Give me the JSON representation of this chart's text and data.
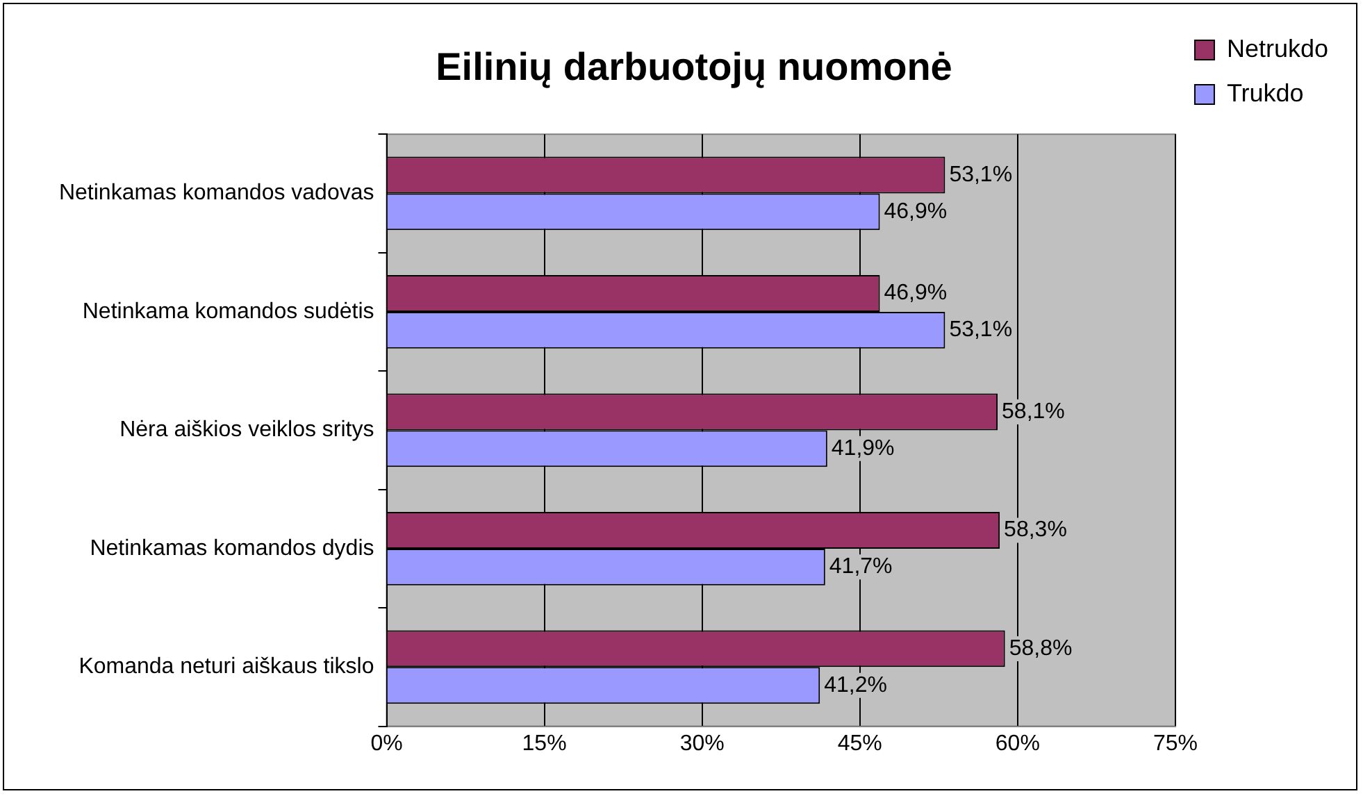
{
  "chart_data": {
    "type": "bar",
    "orientation": "horizontal",
    "title": "Eilinių darbuotojų nuomonė",
    "categories": [
      "Netinkamas komandos vadovas",
      "Netinkama komandos sudėtis",
      "Nėra aiškios veiklos sritys",
      "Netinkamas komandos dydis",
      "Komanda neturi aiškaus tikslo"
    ],
    "series": [
      {
        "name": "Netrukdo",
        "color": "#993366",
        "values": [
          53.1,
          46.9,
          58.1,
          58.3,
          58.8
        ],
        "value_labels": [
          "53,1%",
          "46,9%",
          "58,1%",
          "58,3%",
          "58,8%"
        ]
      },
      {
        "name": "Trukdo",
        "color": "#9999ff",
        "values": [
          46.9,
          53.1,
          41.9,
          41.7,
          41.2
        ],
        "value_labels": [
          "46,9%",
          "53,1%",
          "41,9%",
          "41,7%",
          "41,2%"
        ]
      }
    ],
    "xlim": [
      0,
      75
    ],
    "xticks": [
      {
        "value": 0,
        "label": "0%"
      },
      {
        "value": 15,
        "label": "15%"
      },
      {
        "value": 30,
        "label": "30%"
      },
      {
        "value": 45,
        "label": "45%"
      },
      {
        "value": 60,
        "label": "60%"
      },
      {
        "value": 75,
        "label": "75%"
      }
    ],
    "grid": "x",
    "legend": "right"
  }
}
